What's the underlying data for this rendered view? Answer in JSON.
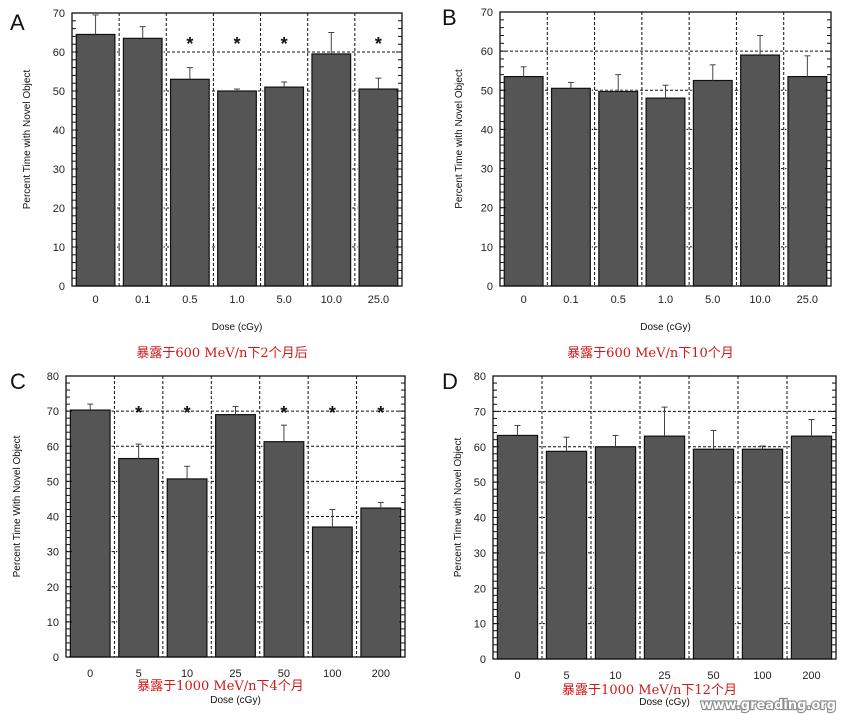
{
  "chart_data": [
    {
      "type": "bar",
      "panel": "A",
      "categories": [
        "0",
        "0.1",
        "0.5",
        "1.0",
        "5.0",
        "10.0",
        "25.0"
      ],
      "values": [
        64.5,
        63.5,
        53,
        50,
        51,
        59.5,
        50.5
      ],
      "error_upper": [
        69.5,
        66.5,
        56,
        50.5,
        52.3,
        65,
        53.3
      ],
      "significant": [
        false,
        false,
        true,
        true,
        true,
        false,
        true
      ],
      "xlabel": "Dose (cGy)",
      "ylabel": "Percent Time with Novel Object",
      "ylim": [
        0,
        70
      ],
      "yticks": [
        0,
        10,
        20,
        30,
        40,
        50,
        60,
        70
      ],
      "grid": true,
      "caption": "暴露于600  MeV/n下2个月后",
      "bar_color": "#555555"
    },
    {
      "type": "bar",
      "panel": "B",
      "categories": [
        "0",
        "0.1",
        "0.5",
        "1.0",
        "5.0",
        "10.0",
        "25.0"
      ],
      "values": [
        53.5,
        50.5,
        49.7,
        48,
        52.5,
        59,
        53.5
      ],
      "error_upper": [
        56,
        52,
        54,
        51.3,
        56.5,
        64,
        58.8
      ],
      "significant": [
        false,
        false,
        false,
        false,
        false,
        false,
        false
      ],
      "xlabel": "Dose (cGy)",
      "ylabel": "Percent Time with Novel Object",
      "ylim": [
        0,
        70
      ],
      "yticks": [
        0,
        10,
        20,
        30,
        40,
        50,
        60,
        70
      ],
      "grid": true,
      "caption": "暴露于600  MeV/n下10个月",
      "bar_color": "#555555"
    },
    {
      "type": "bar",
      "panel": "C",
      "categories": [
        "0",
        "5",
        "10",
        "25",
        "50",
        "100",
        "200"
      ],
      "values": [
        70.3,
        56.5,
        50.7,
        69,
        61.3,
        37,
        42.4
      ],
      "error_upper": [
        72,
        60.6,
        54.3,
        71.3,
        66,
        42,
        44
      ],
      "significant": [
        false,
        true,
        true,
        false,
        true,
        true,
        true
      ],
      "xlabel": "Dose (cGy)",
      "ylabel": "Percent Time With Novel Object",
      "ylim": [
        0,
        80
      ],
      "yticks": [
        0,
        10,
        20,
        30,
        40,
        50,
        60,
        70,
        80
      ],
      "grid": true,
      "caption": "暴露于1000  MeV/n下4个月",
      "bar_color": "#555555"
    },
    {
      "type": "bar",
      "panel": "D",
      "categories": [
        "0",
        "5",
        "10",
        "25",
        "50",
        "100",
        "200"
      ],
      "values": [
        63.2,
        58.7,
        60,
        63,
        59.3,
        59.3,
        63
      ],
      "error_upper": [
        66,
        62.7,
        63.2,
        71.2,
        64.6,
        60.2,
        67.7
      ],
      "significant": [
        false,
        false,
        false,
        false,
        false,
        false,
        false
      ],
      "xlabel": "Dose (cGy)",
      "ylabel": "Percent Time with Novel Object",
      "ylim": [
        0,
        80
      ],
      "yticks": [
        0,
        10,
        20,
        30,
        40,
        50,
        60,
        70,
        80
      ],
      "grid": true,
      "caption": "暴露于1000  MeV/n下12个月",
      "bar_color": "#555555"
    }
  ],
  "significance_marker": "*",
  "watermark": "www.greading.org"
}
